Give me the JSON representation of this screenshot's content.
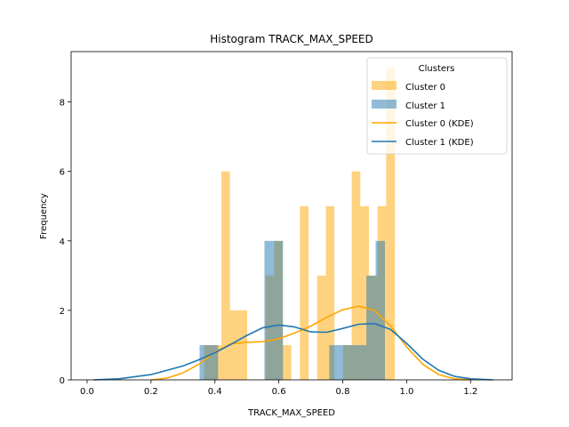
{
  "chart_data": {
    "type": "bar",
    "title": "Histogram TRACK_MAX_SPEED",
    "xlabel": "TRACK_MAX_SPEED",
    "ylabel": "Frequency",
    "xlim": [
      -0.05,
      1.33
    ],
    "ylim": [
      0,
      9.45
    ],
    "xticks": [
      0.0,
      0.2,
      0.4,
      0.6,
      0.8,
      1.0,
      1.2
    ],
    "xtick_labels": [
      "0.0",
      "0.2",
      "0.4",
      "0.6",
      "0.8",
      "1.0",
      "1.2"
    ],
    "yticks": [
      0,
      2,
      4,
      6,
      8
    ],
    "ytick_labels": [
      "0",
      "2",
      "4",
      "6",
      "8"
    ],
    "grid": false,
    "legend": {
      "title": "Clusters",
      "placement": "top-right",
      "entries": [
        "Cluster 0",
        "Cluster 1",
        "Cluster 0 (KDE)",
        "Cluster 1 (KDE)"
      ]
    },
    "colors": {
      "cluster0": "#FFA500",
      "cluster1": "#1f77b4"
    },
    "series": [
      {
        "name": "Cluster 0",
        "kind": "histogram",
        "bins": [
          {
            "x0": 0.366,
            "x1": 0.393,
            "count": 1
          },
          {
            "x0": 0.393,
            "x1": 0.42,
            "count": 1
          },
          {
            "x0": 0.42,
            "x1": 0.447,
            "count": 6
          },
          {
            "x0": 0.447,
            "x1": 0.474,
            "count": 2
          },
          {
            "x0": 0.474,
            "x1": 0.501,
            "count": 2
          },
          {
            "x0": 0.558,
            "x1": 0.585,
            "count": 3
          },
          {
            "x0": 0.585,
            "x1": 0.612,
            "count": 4
          },
          {
            "x0": 0.612,
            "x1": 0.639,
            "count": 1
          },
          {
            "x0": 0.666,
            "x1": 0.693,
            "count": 5
          },
          {
            "x0": 0.72,
            "x1": 0.747,
            "count": 3
          },
          {
            "x0": 0.747,
            "x1": 0.774,
            "count": 5
          },
          {
            "x0": 0.801,
            "x1": 0.828,
            "count": 1
          },
          {
            "x0": 0.828,
            "x1": 0.855,
            "count": 6
          },
          {
            "x0": 0.855,
            "x1": 0.882,
            "count": 5
          },
          {
            "x0": 0.882,
            "x1": 0.909,
            "count": 3
          },
          {
            "x0": 0.909,
            "x1": 0.936,
            "count": 5
          },
          {
            "x0": 0.936,
            "x1": 0.963,
            "count": 9
          }
        ]
      },
      {
        "name": "Cluster 1",
        "kind": "histogram",
        "bins": [
          {
            "x0": 0.352,
            "x1": 0.381,
            "count": 1
          },
          {
            "x0": 0.381,
            "x1": 0.41,
            "count": 1
          },
          {
            "x0": 0.555,
            "x1": 0.584,
            "count": 4
          },
          {
            "x0": 0.584,
            "x1": 0.613,
            "count": 4
          },
          {
            "x0": 0.758,
            "x1": 0.787,
            "count": 1
          },
          {
            "x0": 0.787,
            "x1": 0.816,
            "count": 1
          },
          {
            "x0": 0.816,
            "x1": 0.845,
            "count": 1
          },
          {
            "x0": 0.845,
            "x1": 0.874,
            "count": 1
          },
          {
            "x0": 0.874,
            "x1": 0.903,
            "count": 3
          },
          {
            "x0": 0.903,
            "x1": 0.932,
            "count": 4
          }
        ]
      },
      {
        "name": "Cluster 0 (KDE)",
        "kind": "kde",
        "x": [
          0.2,
          0.25,
          0.3,
          0.35,
          0.4,
          0.45,
          0.5,
          0.55,
          0.6,
          0.65,
          0.7,
          0.75,
          0.8,
          0.85,
          0.9,
          0.95,
          1.0,
          1.05,
          1.1,
          1.15,
          1.2
        ],
        "y": [
          0.0,
          0.05,
          0.2,
          0.45,
          0.8,
          1.04,
          1.08,
          1.1,
          1.18,
          1.35,
          1.55,
          1.8,
          2.02,
          2.12,
          2.0,
          1.55,
          0.95,
          0.45,
          0.15,
          0.03,
          0.0
        ]
      },
      {
        "name": "Cluster 1 (KDE)",
        "kind": "kde",
        "x": [
          0.02,
          0.1,
          0.2,
          0.3,
          0.35,
          0.4,
          0.45,
          0.5,
          0.55,
          0.6,
          0.65,
          0.7,
          0.75,
          0.8,
          0.85,
          0.9,
          0.95,
          1.0,
          1.05,
          1.1,
          1.15,
          1.2,
          1.27
        ],
        "y": [
          0.0,
          0.03,
          0.15,
          0.4,
          0.58,
          0.78,
          1.02,
          1.28,
          1.5,
          1.58,
          1.52,
          1.38,
          1.37,
          1.48,
          1.6,
          1.62,
          1.45,
          1.05,
          0.6,
          0.28,
          0.1,
          0.03,
          0.0
        ]
      }
    ]
  }
}
